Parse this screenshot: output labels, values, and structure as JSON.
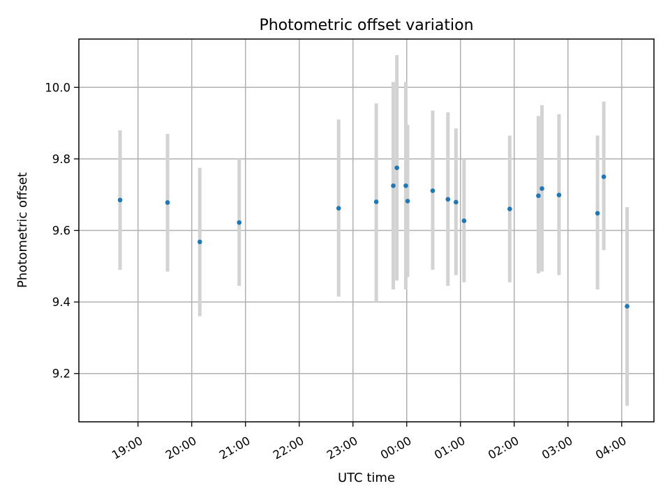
{
  "chart_data": {
    "type": "scatter",
    "title": "Photometric offset variation",
    "xlabel": "UTC time",
    "ylabel": "Photometric offset",
    "xlim_hours": [
      17.9,
      28.6
    ],
    "ylim": [
      9.065,
      10.135
    ],
    "x_ticks": [
      {
        "hour": 19,
        "label": "19:00"
      },
      {
        "hour": 20,
        "label": "20:00"
      },
      {
        "hour": 21,
        "label": "21:00"
      },
      {
        "hour": 22,
        "label": "22:00"
      },
      {
        "hour": 23,
        "label": "23:00"
      },
      {
        "hour": 24,
        "label": "00:00"
      },
      {
        "hour": 25,
        "label": "01:00"
      },
      {
        "hour": 26,
        "label": "02:00"
      },
      {
        "hour": 27,
        "label": "03:00"
      },
      {
        "hour": 28,
        "label": "04:00"
      }
    ],
    "y_ticks": [
      {
        "value": 9.2,
        "label": "9.2"
      },
      {
        "value": 9.4,
        "label": "9.4"
      },
      {
        "value": 9.6,
        "label": "9.6"
      },
      {
        "value": 9.8,
        "label": "9.8"
      },
      {
        "value": 10.0,
        "label": "10.0"
      }
    ],
    "grid": true,
    "point_color": "#1f77b4",
    "errorbar_color": "#d3d3d3",
    "points": [
      {
        "x": "18:40",
        "y": 9.685,
        "err_low": 9.49,
        "err_high": 9.88
      },
      {
        "x": "19:33",
        "y": 9.678,
        "err_low": 9.485,
        "err_high": 9.87
      },
      {
        "x": "20:09",
        "y": 9.568,
        "err_low": 9.36,
        "err_high": 9.775
      },
      {
        "x": "20:53",
        "y": 9.622,
        "err_low": 9.445,
        "err_high": 9.8
      },
      {
        "x": "22:44",
        "y": 9.662,
        "err_low": 9.415,
        "err_high": 9.91
      },
      {
        "x": "23:26",
        "y": 9.68,
        "err_low": 9.4,
        "err_high": 9.955
      },
      {
        "x": "23:45",
        "y": 9.725,
        "err_low": 9.435,
        "err_high": 10.015
      },
      {
        "x": "23:49",
        "y": 9.775,
        "err_low": 9.46,
        "err_high": 10.09
      },
      {
        "x": "23:59",
        "y": 9.725,
        "err_low": 9.435,
        "err_high": 10.015
      },
      {
        "x": "00:01",
        "y": 9.682,
        "err_low": 9.47,
        "err_high": 9.895
      },
      {
        "x": "00:29",
        "y": 9.711,
        "err_low": 9.49,
        "err_high": 9.935
      },
      {
        "x": "00:46",
        "y": 9.687,
        "err_low": 9.445,
        "err_high": 9.93
      },
      {
        "x": "00:55",
        "y": 9.679,
        "err_low": 9.475,
        "err_high": 9.885
      },
      {
        "x": "01:04",
        "y": 9.627,
        "err_low": 9.455,
        "err_high": 9.8
      },
      {
        "x": "01:55",
        "y": 9.66,
        "err_low": 9.455,
        "err_high": 9.865
      },
      {
        "x": "02:27",
        "y": 9.697,
        "err_low": 9.48,
        "err_high": 9.92
      },
      {
        "x": "02:31",
        "y": 9.717,
        "err_low": 9.485,
        "err_high": 9.95
      },
      {
        "x": "02:50",
        "y": 9.699,
        "err_low": 9.475,
        "err_high": 9.925
      },
      {
        "x": "03:33",
        "y": 9.648,
        "err_low": 9.435,
        "err_high": 9.865
      },
      {
        "x": "03:40",
        "y": 9.75,
        "err_low": 9.545,
        "err_high": 9.96
      },
      {
        "x": "04:06",
        "y": 9.388,
        "err_low": 9.11,
        "err_high": 9.665
      }
    ]
  }
}
